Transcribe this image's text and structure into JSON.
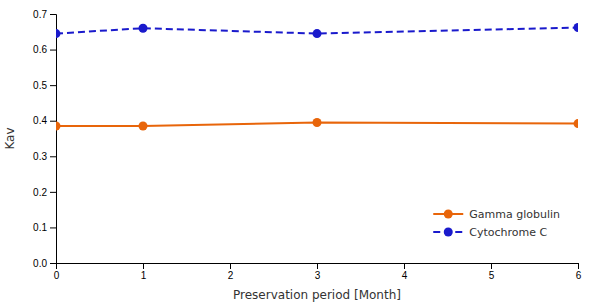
{
  "chart_data": {
    "type": "line",
    "xlabel": "Preservation period [Month]",
    "ylabel": "Kav",
    "x": [
      0,
      1,
      3,
      6
    ],
    "series": [
      {
        "name": "Gamma globulin",
        "color": "#E8650A",
        "marker": "circle",
        "line_style": "solid",
        "values": [
          0.385,
          0.385,
          0.395,
          0.392
        ]
      },
      {
        "name": "Cytochrome C",
        "color": "#1A1ACC",
        "marker": "circle",
        "line_style": "dashed",
        "values": [
          0.645,
          0.66,
          0.645,
          0.662
        ]
      }
    ],
    "xlim": [
      0,
      6
    ],
    "xticks": [
      0,
      1,
      2,
      3,
      4,
      5,
      6
    ],
    "ylim": [
      0.0,
      0.7
    ],
    "yticks": [
      {
        "value": 0,
        "label": "0.0"
      },
      0.1,
      0.2,
      0.3,
      0.4,
      0.5,
      0.6,
      0.7
    ],
    "grid": false,
    "legend": "lower right"
  }
}
